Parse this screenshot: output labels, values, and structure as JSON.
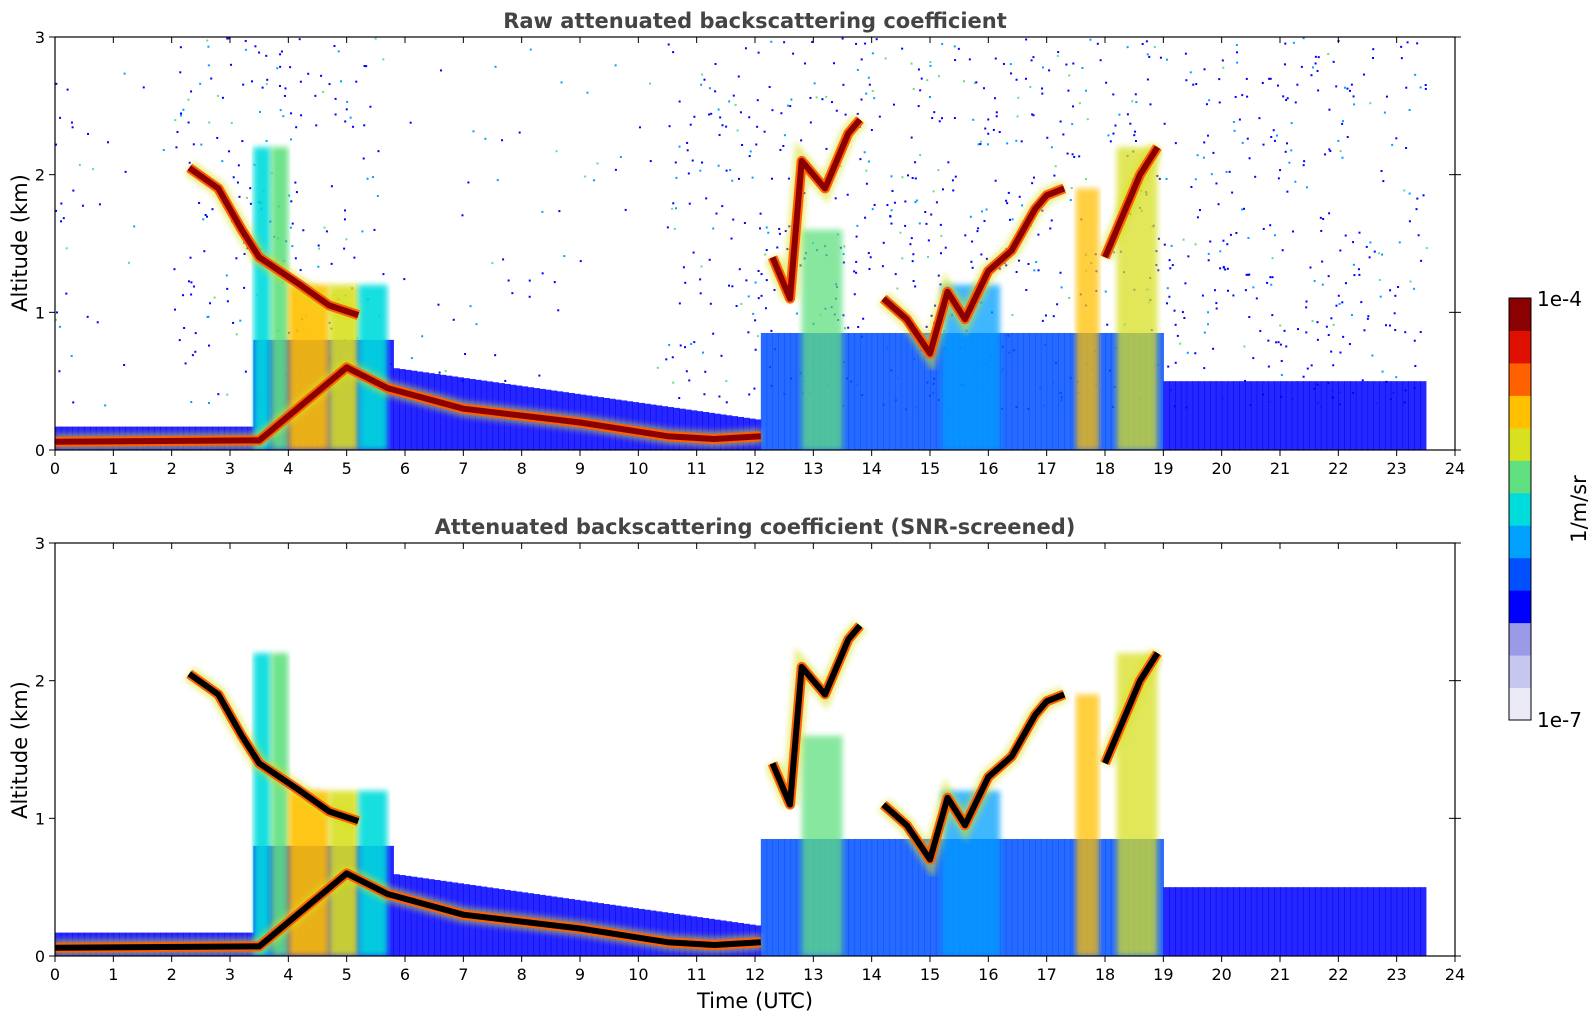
{
  "chart_data": [
    {
      "type": "heatmap",
      "title": "Raw attenuated backscattering coefficient",
      "xlabel": "",
      "ylabel": "Altitude (km)",
      "xlim": [
        0,
        24
      ],
      "ylim": [
        0,
        3
      ],
      "xticks": [
        "0",
        "1",
        "2",
        "3",
        "4",
        "5",
        "6",
        "7",
        "8",
        "9",
        "10",
        "11",
        "12",
        "13",
        "14",
        "15",
        "16",
        "17",
        "18",
        "19",
        "20",
        "21",
        "22",
        "23",
        "24"
      ],
      "yticks": [
        "0",
        "1",
        "2",
        "3"
      ],
      "screened": false,
      "layers": [
        {
          "kind": "boundary_layer",
          "points": [
            [
              0,
              0.06
            ],
            [
              3.5,
              0.07
            ],
            [
              5.0,
              0.6
            ],
            [
              5.7,
              0.45
            ],
            [
              7,
              0.3
            ],
            [
              9,
              0.2
            ],
            [
              10.5,
              0.1
            ],
            [
              11.3,
              0.08
            ],
            [
              12.1,
              0.1
            ]
          ]
        },
        {
          "kind": "cloud",
          "points": [
            [
              2.3,
              2.05
            ],
            [
              2.8,
              1.9
            ],
            [
              3.2,
              1.6
            ],
            [
              3.5,
              1.4
            ],
            [
              4.2,
              1.2
            ],
            [
              4.7,
              1.05
            ],
            [
              5.2,
              0.98
            ]
          ]
        },
        {
          "kind": "cloud",
          "points": [
            [
              12.3,
              1.4
            ],
            [
              12.6,
              1.1
            ],
            [
              12.8,
              2.1
            ],
            [
              13.2,
              1.9
            ],
            [
              13.6,
              2.3
            ],
            [
              13.8,
              2.4
            ]
          ]
        },
        {
          "kind": "cloud",
          "points": [
            [
              14.2,
              1.1
            ],
            [
              14.6,
              0.95
            ],
            [
              15.0,
              0.7
            ],
            [
              15.3,
              1.15
            ],
            [
              15.6,
              0.95
            ],
            [
              16.0,
              1.3
            ],
            [
              16.4,
              1.45
            ],
            [
              16.8,
              1.75
            ],
            [
              17.0,
              1.85
            ],
            [
              17.3,
              1.9
            ]
          ]
        },
        {
          "kind": "cloud",
          "points": [
            [
              18.0,
              1.4
            ],
            [
              18.3,
              1.7
            ],
            [
              18.6,
              2.0
            ],
            [
              18.9,
              2.2
            ]
          ]
        }
      ]
    },
    {
      "type": "heatmap",
      "title": "Attenuated backscattering coefficient (SNR-screened)",
      "xlabel": "Time (UTC)",
      "ylabel": "Altitude (km)",
      "xlim": [
        0,
        24
      ],
      "ylim": [
        0,
        3
      ],
      "xticks": [
        "0",
        "1",
        "2",
        "3",
        "4",
        "5",
        "6",
        "7",
        "8",
        "9",
        "10",
        "11",
        "12",
        "13",
        "14",
        "15",
        "16",
        "17",
        "18",
        "19",
        "20",
        "21",
        "22",
        "23",
        "24"
      ],
      "yticks": [
        "0",
        "1",
        "2",
        "3"
      ],
      "screened": true,
      "layers": [
        {
          "kind": "boundary_layer",
          "points": [
            [
              0,
              0.06
            ],
            [
              3.5,
              0.07
            ],
            [
              5.0,
              0.6
            ],
            [
              5.7,
              0.45
            ],
            [
              7,
              0.3
            ],
            [
              9,
              0.2
            ],
            [
              10.5,
              0.1
            ],
            [
              11.3,
              0.08
            ],
            [
              12.1,
              0.1
            ]
          ]
        },
        {
          "kind": "cloud",
          "points": [
            [
              2.3,
              2.05
            ],
            [
              2.8,
              1.9
            ],
            [
              3.2,
              1.6
            ],
            [
              3.5,
              1.4
            ],
            [
              4.2,
              1.2
            ],
            [
              4.7,
              1.05
            ],
            [
              5.2,
              0.98
            ]
          ]
        },
        {
          "kind": "cloud",
          "points": [
            [
              12.3,
              1.4
            ],
            [
              12.6,
              1.1
            ],
            [
              12.8,
              2.1
            ],
            [
              13.2,
              1.9
            ],
            [
              13.6,
              2.3
            ],
            [
              13.8,
              2.4
            ]
          ]
        },
        {
          "kind": "cloud",
          "points": [
            [
              14.2,
              1.1
            ],
            [
              14.6,
              0.95
            ],
            [
              15.0,
              0.7
            ],
            [
              15.3,
              1.15
            ],
            [
              15.6,
              0.95
            ],
            [
              16.0,
              1.3
            ],
            [
              16.4,
              1.45
            ],
            [
              16.8,
              1.75
            ],
            [
              17.0,
              1.85
            ],
            [
              17.3,
              1.9
            ]
          ]
        },
        {
          "kind": "cloud",
          "points": [
            [
              18.0,
              1.4
            ],
            [
              18.3,
              1.7
            ],
            [
              18.6,
              2.0
            ],
            [
              18.9,
              2.2
            ]
          ]
        }
      ]
    }
  ],
  "colorbar": {
    "label": "1/m/sr",
    "max_label": "1e-4",
    "min_label": "1e-7",
    "colors": [
      "#ebebf7",
      "#c6c6ef",
      "#9a9ae8",
      "#0000ff",
      "#0050ff",
      "#00a0ff",
      "#00dcdc",
      "#60e080",
      "#d8e020",
      "#ffc000",
      "#ff6000",
      "#e01000",
      "#8b0000"
    ]
  },
  "colors": {
    "title": "#444444",
    "background": "#ffffff",
    "saturated": "#000000"
  }
}
